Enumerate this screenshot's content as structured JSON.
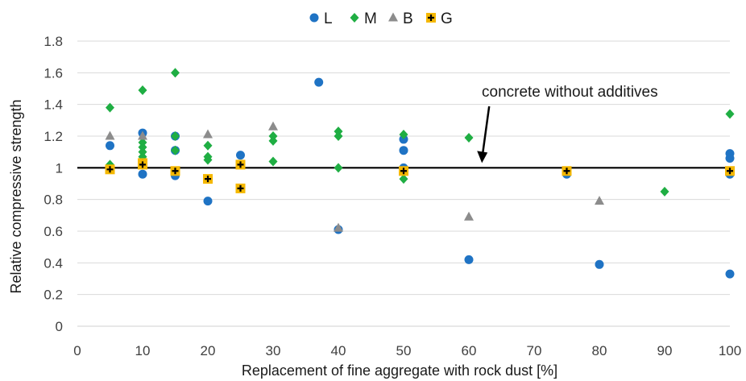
{
  "chart_data": {
    "type": "scatter",
    "xlabel": "Replacement of fine aggregate with rock dust [%]",
    "ylabel": "Relative compressive strength",
    "xlim": [
      0,
      100
    ],
    "ylim": [
      0,
      1.8
    ],
    "x_ticks": [
      0,
      10,
      20,
      30,
      40,
      50,
      60,
      70,
      80,
      90,
      100
    ],
    "y_ticks": [
      0,
      0.2,
      0.4,
      0.6,
      0.8,
      1,
      1.2,
      1.4,
      1.6,
      1.8
    ],
    "x_tick_labels": [
      "0",
      "10",
      "20",
      "30",
      "40",
      "50",
      "60",
      "70",
      "80",
      "90",
      "100"
    ],
    "y_tick_labels": [
      "0",
      "0.2",
      "0.4",
      "0.6",
      "0.8",
      "1",
      "1.2",
      "1.4",
      "1.6",
      "1.8"
    ],
    "grid": "horizontal",
    "legend_position": "top-center",
    "reference_line": {
      "y": 1,
      "color": "#000000"
    },
    "annotation": {
      "text": "concrete without additives",
      "arrow_to": [
        62,
        1
      ]
    },
    "series": [
      {
        "name": "L",
        "marker": "circle",
        "color": "#1f73c4",
        "points": [
          [
            5,
            1.14
          ],
          [
            10,
            1.22
          ],
          [
            10,
            0.96
          ],
          [
            15,
            1.2
          ],
          [
            15,
            1.11
          ],
          [
            15,
            0.95
          ],
          [
            20,
            0.79
          ],
          [
            25,
            1.08
          ],
          [
            37,
            1.54
          ],
          [
            40,
            0.61
          ],
          [
            50,
            1.18
          ],
          [
            50,
            1.11
          ],
          [
            50,
            1.0
          ],
          [
            60,
            0.42
          ],
          [
            75,
            0.96
          ],
          [
            80,
            0.39
          ],
          [
            100,
            1.09
          ],
          [
            100,
            1.06
          ],
          [
            100,
            0.96
          ],
          [
            100,
            0.33
          ]
        ]
      },
      {
        "name": "M",
        "marker": "diamond",
        "color": "#1fae43",
        "points": [
          [
            5,
            1.38
          ],
          [
            5,
            1.02
          ],
          [
            10,
            1.49
          ],
          [
            10,
            1.16
          ],
          [
            10,
            1.13
          ],
          [
            10,
            1.1
          ],
          [
            10,
            1.07
          ],
          [
            15,
            1.6
          ],
          [
            15,
            1.2
          ],
          [
            15,
            1.11
          ],
          [
            20,
            1.14
          ],
          [
            20,
            1.07
          ],
          [
            20,
            1.05
          ],
          [
            30,
            1.2
          ],
          [
            30,
            1.17
          ],
          [
            30,
            1.04
          ],
          [
            40,
            1.23
          ],
          [
            40,
            1.2
          ],
          [
            40,
            1.0
          ],
          [
            50,
            1.21
          ],
          [
            50,
            0.93
          ],
          [
            60,
            1.19
          ],
          [
            90,
            0.85
          ],
          [
            100,
            1.34
          ]
        ]
      },
      {
        "name": "B",
        "marker": "triangle",
        "color": "#8c8c8c",
        "points": [
          [
            5,
            1.2
          ],
          [
            10,
            1.2
          ],
          [
            20,
            1.21
          ],
          [
            30,
            1.26
          ],
          [
            40,
            0.62
          ],
          [
            60,
            0.69
          ],
          [
            80,
            0.79
          ]
        ]
      },
      {
        "name": "G",
        "marker": "plus-square",
        "color": "#f5b800",
        "points": [
          [
            5,
            0.99
          ],
          [
            10,
            1.03
          ],
          [
            10,
            1.02
          ],
          [
            15,
            0.98
          ],
          [
            20,
            0.93
          ],
          [
            25,
            1.02
          ],
          [
            25,
            0.87
          ],
          [
            50,
            0.98
          ],
          [
            75,
            0.98
          ],
          [
            100,
            0.98
          ]
        ]
      }
    ]
  }
}
